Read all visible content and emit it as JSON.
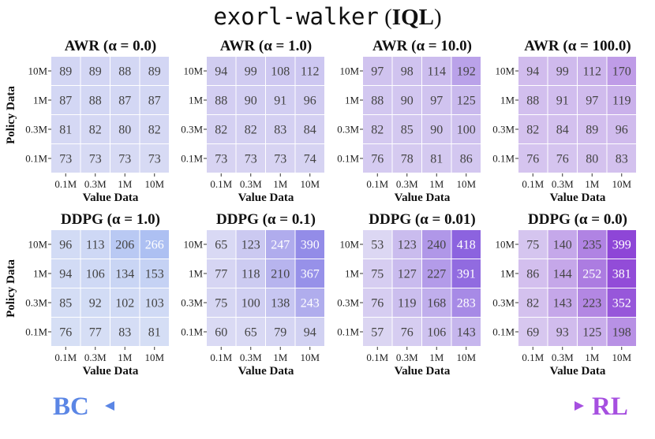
{
  "title": {
    "mono": "exorl-walker",
    "open": "(",
    "bold": "IQL",
    "close": ")"
  },
  "colors": {
    "bc": "#5b86e5",
    "rl": "#a64fe0",
    "low": "#eef0f7",
    "blue_high": "#8faaf0",
    "purple_high": "#8a3fd6"
  },
  "arrow": {
    "left_label": "BC",
    "right_label": "RL"
  },
  "chart_data": [
    {
      "type": "heatmap",
      "title": "AWR (α = 0.0)",
      "method": "AWR",
      "alpha": "0.0",
      "rows": [
        "10M",
        "1M",
        "0.3M",
        "0.1M"
      ],
      "columns": [
        "0.1M",
        "0.3M",
        "1M",
        "10M"
      ],
      "xlabel": "Value Data",
      "ylabel": "Policy Data",
      "values": [
        [
          89,
          89,
          88,
          89
        ],
        [
          87,
          88,
          87,
          87
        ],
        [
          81,
          82,
          80,
          82
        ],
        [
          73,
          73,
          73,
          73
        ]
      ]
    },
    {
      "type": "heatmap",
      "title": "AWR (α = 1.0)",
      "method": "AWR",
      "alpha": "1.0",
      "rows": [
        "10M",
        "1M",
        "0.3M",
        "0.1M"
      ],
      "columns": [
        "0.1M",
        "0.3M",
        "1M",
        "10M"
      ],
      "xlabel": "Value Data",
      "ylabel": "",
      "values": [
        [
          94,
          99,
          108,
          112
        ],
        [
          88,
          90,
          91,
          96
        ],
        [
          82,
          82,
          83,
          84
        ],
        [
          73,
          73,
          73,
          74
        ]
      ]
    },
    {
      "type": "heatmap",
      "title": "AWR (α = 10.0)",
      "method": "AWR",
      "alpha": "10.0",
      "rows": [
        "10M",
        "1M",
        "0.3M",
        "0.1M"
      ],
      "columns": [
        "0.1M",
        "0.3M",
        "1M",
        "10M"
      ],
      "xlabel": "Value Data",
      "ylabel": "",
      "values": [
        [
          97,
          98,
          114,
          192
        ],
        [
          88,
          90,
          97,
          125
        ],
        [
          82,
          85,
          90,
          100
        ],
        [
          76,
          78,
          81,
          86
        ]
      ]
    },
    {
      "type": "heatmap",
      "title": "AWR (α = 100.0)",
      "method": "AWR",
      "alpha": "100.0",
      "rows": [
        "10M",
        "1M",
        "0.3M",
        "0.1M"
      ],
      "columns": [
        "0.1M",
        "0.3M",
        "1M",
        "10M"
      ],
      "xlabel": "Value Data",
      "ylabel": "",
      "values": [
        [
          94,
          99,
          112,
          170
        ],
        [
          88,
          91,
          97,
          119
        ],
        [
          82,
          84,
          89,
          96
        ],
        [
          76,
          76,
          80,
          83
        ]
      ]
    },
    {
      "type": "heatmap",
      "title": "DDPG (α = 1.0)",
      "method": "DDPG",
      "alpha": "1.0",
      "rows": [
        "10M",
        "1M",
        "0.3M",
        "0.1M"
      ],
      "columns": [
        "0.1M",
        "0.3M",
        "1M",
        "10M"
      ],
      "xlabel": "Value Data",
      "ylabel": "Policy Data",
      "values": [
        [
          96,
          113,
          206,
          266
        ],
        [
          94,
          106,
          134,
          153
        ],
        [
          85,
          92,
          102,
          103
        ],
        [
          76,
          77,
          83,
          81
        ]
      ]
    },
    {
      "type": "heatmap",
      "title": "DDPG (α = 0.1)",
      "method": "DDPG",
      "alpha": "0.1",
      "rows": [
        "10M",
        "1M",
        "0.3M",
        "0.1M"
      ],
      "columns": [
        "0.1M",
        "0.3M",
        "1M",
        "10M"
      ],
      "xlabel": "Value Data",
      "ylabel": "",
      "values": [
        [
          65,
          123,
          247,
          390
        ],
        [
          77,
          118,
          210,
          367
        ],
        [
          75,
          100,
          138,
          243
        ],
        [
          60,
          65,
          79,
          94
        ]
      ]
    },
    {
      "type": "heatmap",
      "title": "DDPG (α = 0.01)",
      "method": "DDPG",
      "alpha": "0.01",
      "rows": [
        "10M",
        "1M",
        "0.3M",
        "0.1M"
      ],
      "columns": [
        "0.1M",
        "0.3M",
        "1M",
        "10M"
      ],
      "xlabel": "Value Data",
      "ylabel": "",
      "values": [
        [
          53,
          123,
          240,
          418
        ],
        [
          75,
          127,
          227,
          391
        ],
        [
          76,
          119,
          168,
          283
        ],
        [
          57,
          76,
          106,
          143
        ]
      ]
    },
    {
      "type": "heatmap",
      "title": "DDPG (α = 0.0)",
      "method": "DDPG",
      "alpha": "0.0",
      "rows": [
        "10M",
        "1M",
        "0.3M",
        "0.1M"
      ],
      "columns": [
        "0.1M",
        "0.3M",
        "1M",
        "10M"
      ],
      "xlabel": "Value Data",
      "ylabel": "",
      "values": [
        [
          75,
          140,
          235,
          399
        ],
        [
          86,
          144,
          252,
          381
        ],
        [
          82,
          143,
          223,
          352
        ],
        [
          69,
          93,
          125,
          198
        ]
      ]
    }
  ]
}
